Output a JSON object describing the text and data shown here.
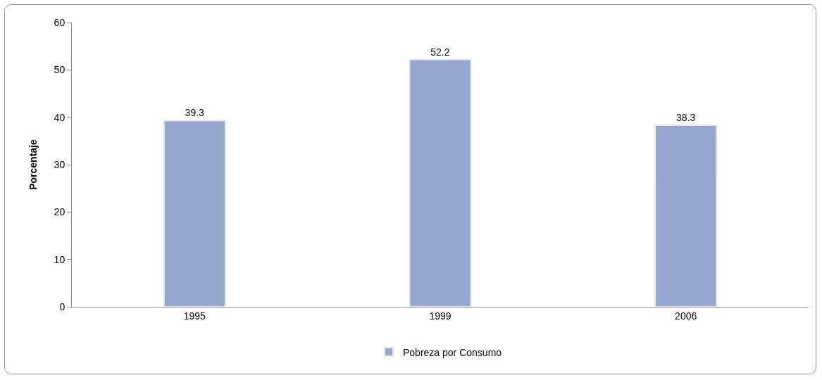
{
  "chart_data": {
    "type": "bar",
    "ylabel": "Porcentaje",
    "categories": [
      "1995",
      "1999",
      "2006"
    ],
    "series": [
      {
        "name": "Pobreza por Consumo",
        "color": "#95a9d0",
        "values": [
          39.3,
          52.2,
          38.3
        ]
      }
    ],
    "ylim": [
      0,
      60
    ],
    "yticks": [
      0,
      10,
      20,
      30,
      40,
      50,
      60
    ],
    "grid": false,
    "legend": "bottom",
    "data_labels": true
  }
}
